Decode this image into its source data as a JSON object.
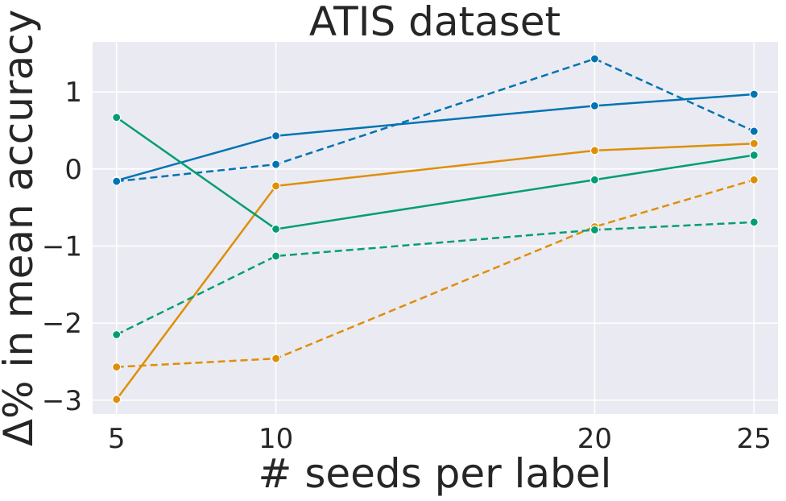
{
  "chart_data": {
    "type": "line",
    "title": "ATIS dataset",
    "xlabel": "# seeds per label",
    "ylabel": "Δ% in mean accuracy",
    "x": [
      5,
      10,
      20,
      25
    ],
    "x_tick_labels": [
      "5",
      "10",
      "20",
      "25"
    ],
    "y_ticks": [
      1,
      0,
      -1,
      -2,
      -3
    ],
    "y_tick_labels": [
      "1",
      "0",
      "−1",
      "−2",
      "−3"
    ],
    "xlim": [
      4.25,
      25.75
    ],
    "ylim": [
      -3.18,
      1.65
    ],
    "grid": true,
    "background_color": "#eaeaf2",
    "series": [
      {
        "color": "#0173b2",
        "style": "solid",
        "values": [
          -0.15,
          0.43,
          0.82,
          0.97
        ]
      },
      {
        "color": "#0173b2",
        "style": "dashed",
        "values": [
          -0.16,
          0.06,
          1.43,
          0.49
        ]
      },
      {
        "color": "#de8f05",
        "style": "solid",
        "values": [
          -2.99,
          -0.22,
          0.24,
          0.33
        ]
      },
      {
        "color": "#de8f05",
        "style": "dashed",
        "values": [
          -2.57,
          -2.46,
          -0.75,
          -0.14
        ]
      },
      {
        "color": "#029e73",
        "style": "solid",
        "values": [
          0.67,
          -0.78,
          -0.14,
          0.18
        ]
      },
      {
        "color": "#029e73",
        "style": "dashed",
        "values": [
          -2.15,
          -1.13,
          -0.79,
          -0.69
        ]
      }
    ]
  }
}
